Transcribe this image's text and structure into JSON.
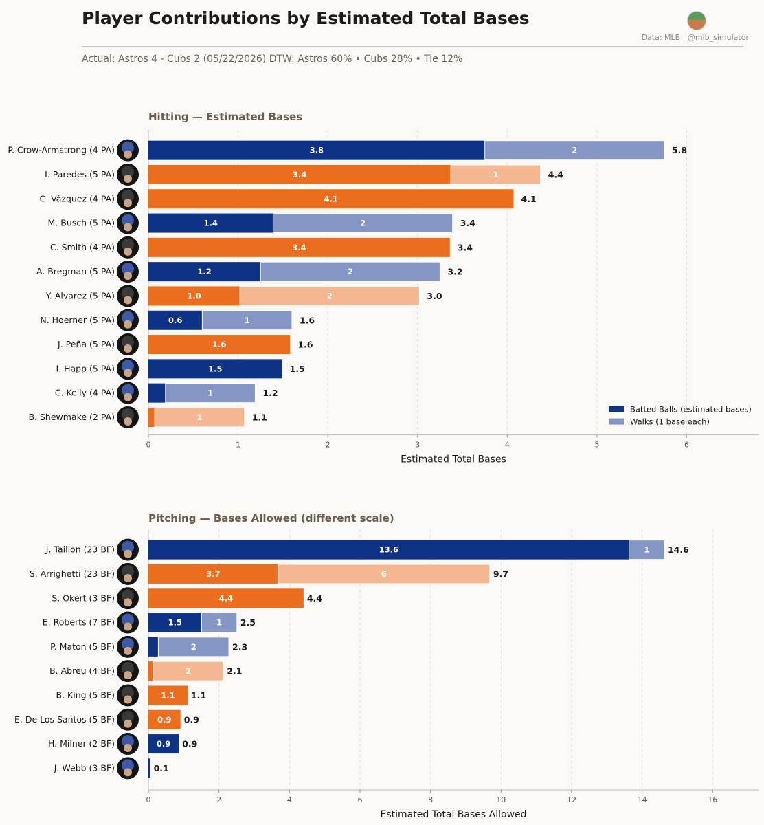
{
  "header": {
    "title": "Player Contributions by Estimated Total Bases",
    "source": "Data: MLB  |  @mlb_simulator",
    "subtitle": "Actual: Astros 4 - Cubs 2   (05/22/2026)    DTW: Astros 60% • Cubs 28% • Tie 12%"
  },
  "colors": {
    "cubs_batted": "#0e3386",
    "cubs_walks": "#8497c4",
    "astros_batted": "#eb6e1f",
    "astros_walks": "#f4b791",
    "grid": "#e3e0da"
  },
  "chart_data": [
    {
      "type": "bar",
      "orientation": "horizontal",
      "stacked": true,
      "title": "Hitting  —  Estimated Bases",
      "xlabel": "Estimated Total Bases",
      "xlim": [
        0,
        6.8
      ],
      "xticks": [
        0,
        1,
        2,
        3,
        4,
        5,
        6
      ],
      "legend": {
        "placement": "bottom-right",
        "entries": [
          "Batted Balls (estimated bases)",
          "Walks (1 base each)"
        ]
      },
      "rows": [
        {
          "label": "P. Crow-Armstrong  (4 PA)",
          "team": "cubs",
          "batted": 3.75,
          "batted_label": "3.8",
          "walks": 2,
          "total": "5.8"
        },
        {
          "label": "I. Paredes  (5 PA)",
          "team": "astros",
          "batted": 3.37,
          "batted_label": "3.4",
          "walks": 1,
          "total": "4.4"
        },
        {
          "label": "C. Vázquez  (4 PA)",
          "team": "astros",
          "batted": 4.07,
          "batted_label": "4.1",
          "walks": 0,
          "total": "4.1"
        },
        {
          "label": "M. Busch  (5 PA)",
          "team": "cubs",
          "batted": 1.39,
          "batted_label": "1.4",
          "walks": 2,
          "total": "3.4"
        },
        {
          "label": "C. Smith  (4 PA)",
          "team": "astros",
          "batted": 3.36,
          "batted_label": "3.4",
          "walks": 0,
          "total": "3.4"
        },
        {
          "label": "A. Bregman  (5 PA)",
          "team": "cubs",
          "batted": 1.25,
          "batted_label": "1.2",
          "walks": 2,
          "total": "3.2"
        },
        {
          "label": "Y. Alvarez  (5 PA)",
          "team": "astros",
          "batted": 1.02,
          "batted_label": "1.0",
          "walks": 2,
          "total": "3.0"
        },
        {
          "label": "N. Hoerner  (5 PA)",
          "team": "cubs",
          "batted": 0.6,
          "batted_label": "0.6",
          "walks": 1,
          "total": "1.6"
        },
        {
          "label": "J. Peña  (5 PA)",
          "team": "astros",
          "batted": 1.58,
          "batted_label": "1.6",
          "walks": 0,
          "total": "1.6"
        },
        {
          "label": "I. Happ  (5 PA)",
          "team": "cubs",
          "batted": 1.49,
          "batted_label": "1.5",
          "walks": 0,
          "total": "1.5"
        },
        {
          "label": "C. Kelly  (4 PA)",
          "team": "cubs",
          "batted": 0.19,
          "batted_label": "",
          "walks": 1,
          "total": "1.2"
        },
        {
          "label": "B. Shewmake  (2 PA)",
          "team": "astros",
          "batted": 0.07,
          "batted_label": "",
          "walks": 1,
          "total": "1.1"
        }
      ]
    },
    {
      "type": "bar",
      "orientation": "horizontal",
      "stacked": true,
      "title": "Pitching  —  Bases Allowed  (different scale)",
      "xlabel": "Estimated Total Bases Allowed",
      "xlim": [
        0,
        17.3
      ],
      "xticks": [
        0,
        2,
        4,
        6,
        8,
        10,
        12,
        14,
        16
      ],
      "rows": [
        {
          "label": "J. Taillon  (23 BF)",
          "team": "cubs",
          "batted": 13.63,
          "batted_label": "13.6",
          "walks": 1,
          "total": "14.6"
        },
        {
          "label": "S. Arrighetti  (23 BF)",
          "team": "astros",
          "batted": 3.68,
          "batted_label": "3.7",
          "walks": 6,
          "total": "9.7"
        },
        {
          "label": "S. Okert  (3 BF)",
          "team": "astros",
          "batted": 4.4,
          "batted_label": "4.4",
          "walks": 0,
          "total": "4.4"
        },
        {
          "label": "E. Roberts  (7 BF)",
          "team": "cubs",
          "batted": 1.51,
          "batted_label": "1.5",
          "walks": 1,
          "total": "2.5"
        },
        {
          "label": "P. Maton  (5 BF)",
          "team": "cubs",
          "batted": 0.28,
          "batted_label": "",
          "walks": 2,
          "total": "2.3"
        },
        {
          "label": "B. Abreu  (4 BF)",
          "team": "astros",
          "batted": 0.13,
          "batted_label": "",
          "walks": 2,
          "total": "2.1"
        },
        {
          "label": "B. King  (5 BF)",
          "team": "astros",
          "batted": 1.11,
          "batted_label": "1.1",
          "walks": 0,
          "total": "1.1"
        },
        {
          "label": "E. De Los Santos  (5 BF)",
          "team": "astros",
          "batted": 0.91,
          "batted_label": "0.9",
          "walks": 0,
          "total": "0.9"
        },
        {
          "label": "H. Milner  (2 BF)",
          "team": "cubs",
          "batted": 0.86,
          "batted_label": "0.9",
          "walks": 0,
          "total": "0.9"
        },
        {
          "label": "J. Webb  (3 BF)",
          "team": "cubs",
          "batted": 0.05,
          "batted_label": "",
          "walks": 0,
          "total": "0.1"
        }
      ]
    }
  ]
}
